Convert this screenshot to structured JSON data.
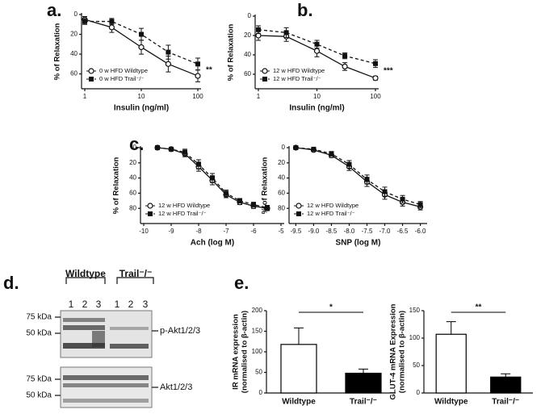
{
  "chart_data": [
    {
      "type": "line",
      "panel_label": "a.",
      "xlabel": "Insulin (ng/ml)",
      "ylabel": "% of Relaxation",
      "xscale": "log",
      "x": [
        1,
        3,
        10,
        30,
        100
      ],
      "xlim": [
        1,
        100
      ],
      "xticks": [
        1,
        10,
        100
      ],
      "ylim": [
        0,
        75
      ],
      "yticks": [
        0,
        20,
        40,
        60
      ],
      "y_inverted": true,
      "series": [
        {
          "name": "0 w HFD Wildtype",
          "marker": "circle-open",
          "dash": false,
          "color": "#111111",
          "values": [
            5,
            13,
            33,
            50,
            62
          ],
          "errors": [
            3,
            5,
            7,
            8,
            6
          ]
        },
        {
          "name": "0 w HFD Trail⁻/⁻",
          "marker": "square",
          "dash": true,
          "color": "#111111",
          "values": [
            7,
            7,
            20,
            38,
            50
          ],
          "errors": [
            3,
            3,
            6,
            7,
            6
          ]
        }
      ],
      "annotation": "**"
    },
    {
      "type": "line",
      "panel_label": "b.",
      "xlabel": "Insulin (ng/ml)",
      "ylabel": "% of Relaxation",
      "xscale": "log",
      "x": [
        1,
        3,
        10,
        30,
        100
      ],
      "xlim": [
        1,
        100
      ],
      "xticks": [
        1,
        10,
        100
      ],
      "ylim": [
        0,
        75
      ],
      "yticks": [
        0,
        20,
        40,
        60
      ],
      "y_inverted": true,
      "series": [
        {
          "name": "12 w HFD Wildtype",
          "marker": "circle-open",
          "dash": false,
          "color": "#111111",
          "values": [
            20,
            21,
            36,
            52,
            64
          ],
          "errors": [
            5,
            5,
            6,
            4,
            2
          ]
        },
        {
          "name": "12 w HFD Trail⁻/⁻",
          "marker": "square",
          "dash": true,
          "color": "#111111",
          "values": [
            14,
            17,
            29,
            41,
            49
          ],
          "errors": [
            4,
            5,
            4,
            3,
            4
          ]
        }
      ],
      "annotation": "***"
    },
    {
      "type": "line",
      "panel_label": "c.",
      "xlabel": "Ach (log M)",
      "ylabel": "% of Relaxation",
      "x": [
        -9.5,
        -9,
        -8.5,
        -8,
        -7.5,
        -7,
        -6.5,
        -6,
        -5.5
      ],
      "xlim": [
        -10,
        -5
      ],
      "xticks": [
        -10,
        -9,
        -8,
        -7,
        -6,
        -5
      ],
      "ylim": [
        0,
        100
      ],
      "yticks": [
        0,
        20,
        40,
        60,
        80
      ],
      "y_inverted": true,
      "series": [
        {
          "name": "12 w HFD Wildtype",
          "marker": "circle-open",
          "dash": false,
          "color": "#111111",
          "values": [
            0,
            2,
            8,
            25,
            43,
            62,
            72,
            77,
            80
          ],
          "errors": [
            1,
            2,
            4,
            6,
            6,
            4,
            3,
            3,
            3
          ]
        },
        {
          "name": "12 w HFD Trail⁻/⁻",
          "marker": "square",
          "dash": true,
          "color": "#111111",
          "values": [
            0,
            2,
            6,
            22,
            40,
            60,
            70,
            75,
            79
          ],
          "errors": [
            1,
            2,
            4,
            6,
            6,
            4,
            3,
            3,
            3
          ]
        }
      ]
    },
    {
      "type": "line",
      "xlabel": "SNP (log M)",
      "ylabel": "% of Relaxation",
      "x": [
        -9.5,
        -9,
        -8.5,
        -8,
        -7.5,
        -7,
        -6.5,
        -6
      ],
      "xlim": [
        -9.6,
        -5.9
      ],
      "xticks": [
        {
          "value": -9.5,
          "label": "-9.5"
        },
        {
          "value": -9,
          "label": "-9.0"
        },
        {
          "value": -8.5,
          "label": "-8.5"
        },
        {
          "value": -8,
          "label": "-8.0"
        },
        {
          "value": -7.5,
          "label": "-7.5"
        },
        {
          "value": -7,
          "label": "-7.0"
        },
        {
          "value": -6.5,
          "label": "-6.5"
        },
        {
          "value": -6,
          "label": "-6.0"
        }
      ],
      "ylim": [
        0,
        100
      ],
      "yticks": [
        0,
        20,
        40,
        60,
        80
      ],
      "y_inverted": true,
      "series": [
        {
          "name": "12 w HFD Wildtype",
          "marker": "circle-open",
          "dash": false,
          "color": "#111111",
          "values": [
            0,
            3,
            10,
            25,
            45,
            62,
            72,
            78
          ],
          "errors": [
            1,
            2,
            3,
            5,
            6,
            6,
            5,
            4
          ]
        },
        {
          "name": "12 w HFD Trail⁻/⁻",
          "marker": "square",
          "dash": true,
          "color": "#111111",
          "values": [
            0,
            2,
            8,
            22,
            42,
            58,
            68,
            75
          ],
          "errors": [
            1,
            2,
            3,
            5,
            6,
            6,
            5,
            4
          ]
        }
      ]
    },
    {
      "type": "bar",
      "panel_label": "e.",
      "ylabel": [
        "IR mRNA expression",
        "(normalised to β-actin)"
      ],
      "categories": [
        "Wildtype",
        "Trail⁻/⁻"
      ],
      "values": [
        118,
        48
      ],
      "errors": [
        40,
        10
      ],
      "colors": [
        "#ffffff",
        "#000000"
      ],
      "ylim": [
        0,
        200
      ],
      "yticks": [
        0,
        50,
        100,
        150,
        200
      ],
      "annotation": "*"
    },
    {
      "type": "bar",
      "ylabel": [
        "GLUT-4 mRNA Expression",
        "(normalised to β-actin)"
      ],
      "categories": [
        "Wildtype",
        "Trail⁻/⁻"
      ],
      "values": [
        107,
        29
      ],
      "errors": [
        23,
        6
      ],
      "colors": [
        "#ffffff",
        "#000000"
      ],
      "ylim": [
        0,
        150
      ],
      "yticks": [
        0,
        50,
        100,
        150
      ],
      "annotation": "**"
    }
  ],
  "blot": {
    "panel_label": "d.",
    "groups": [
      "Wildtype",
      "Trail⁻/⁻"
    ],
    "lanes": [
      "1",
      "2",
      "3",
      "1",
      "2",
      "3"
    ],
    "top_markers": [
      "75 kDa",
      "50 kDa"
    ],
    "top_label": "p-Akt1/2/3",
    "bottom_markers": [
      "75 kDa",
      "50 kDa"
    ],
    "bottom_label": "Akt1/2/3"
  }
}
